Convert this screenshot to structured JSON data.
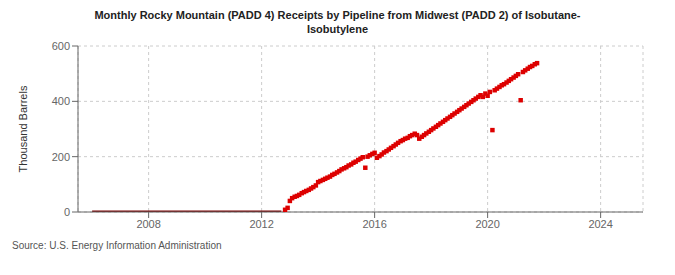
{
  "chart_data": {
    "type": "scatter",
    "title": "Monthly Rocky Mountain (PADD 4) Receipts by Pipeline from Midwest (PADD 2) of Isobutane-\nIsobutylene",
    "ylabel": "Thousand Barrels",
    "annotations": [
      "Source: U.S. Energy Information Administration"
    ],
    "xlim": [
      2005.5,
      2025.5
    ],
    "xticks": [
      2008,
      2012,
      2016,
      2020,
      2024
    ],
    "ylim": [
      0,
      600
    ],
    "yticks": [
      0,
      200,
      400,
      600
    ],
    "grid": true,
    "series": [
      {
        "type": "line",
        "color": "#7a0000",
        "line_style": "solid",
        "x": [
          2006.0,
          2006.1,
          2006.2,
          2006.3,
          2006.4,
          2006.5,
          2006.6,
          2006.7,
          2006.8,
          2006.9,
          2007.0,
          2007.1,
          2007.2,
          2007.3,
          2007.4,
          2007.5,
          2007.6,
          2007.7,
          2007.8,
          2007.9,
          2008.0,
          2008.1,
          2008.2,
          2008.3,
          2008.4,
          2008.5,
          2008.6,
          2008.7,
          2008.8,
          2008.9,
          2009.0,
          2009.1,
          2009.2,
          2009.3,
          2009.4,
          2009.5,
          2009.6,
          2009.7,
          2009.8,
          2009.9,
          2010.0,
          2010.1,
          2010.2,
          2010.3,
          2010.4,
          2010.5,
          2010.6,
          2010.7,
          2010.8,
          2010.9,
          2011.0,
          2011.1,
          2011.2,
          2011.3,
          2011.4,
          2011.5,
          2011.6,
          2011.7,
          2011.8,
          2011.9,
          2012.0,
          2012.1,
          2012.2,
          2012.3,
          2012.4,
          2012.5,
          2012.6,
          2012.7
        ],
        "values": [
          0,
          0,
          0,
          0,
          0,
          0,
          0,
          0,
          0,
          0,
          0,
          0,
          0,
          0,
          0,
          0,
          0,
          0,
          0,
          0,
          0,
          0,
          0,
          0,
          0,
          0,
          0,
          0,
          0,
          0,
          0,
          0,
          0,
          0,
          0,
          0,
          0,
          0,
          0,
          0,
          0,
          0,
          0,
          0,
          0,
          0,
          0,
          0,
          0,
          0,
          0,
          0,
          0,
          0,
          0,
          0,
          0,
          0,
          0,
          0,
          0,
          0,
          0,
          0,
          0,
          0,
          0,
          0
        ]
      },
      {
        "type": "scatter",
        "color": "#dd0000",
        "marker": "square",
        "x": [
          2012.83,
          2012.92,
          2013.0,
          2013.08,
          2013.17,
          2013.25,
          2013.33,
          2013.42,
          2013.5,
          2013.58,
          2013.67,
          2013.75,
          2013.83,
          2013.92,
          2014.0,
          2014.08,
          2014.17,
          2014.25,
          2014.33,
          2014.42,
          2014.5,
          2014.58,
          2014.67,
          2014.75,
          2014.83,
          2014.92,
          2015.0,
          2015.08,
          2015.17,
          2015.25,
          2015.33,
          2015.42,
          2015.5,
          2015.58,
          2015.67,
          2015.75,
          2015.83,
          2015.92,
          2016.0,
          2016.08,
          2016.17,
          2016.25,
          2016.33,
          2016.42,
          2016.5,
          2016.58,
          2016.67,
          2016.75,
          2016.83,
          2016.92,
          2017.0,
          2017.08,
          2017.17,
          2017.25,
          2017.33,
          2017.42,
          2017.5,
          2017.58,
          2017.67,
          2017.75,
          2017.83,
          2017.92,
          2018.0,
          2018.08,
          2018.17,
          2018.25,
          2018.33,
          2018.42,
          2018.5,
          2018.58,
          2018.67,
          2018.75,
          2018.83,
          2018.92,
          2019.0,
          2019.08,
          2019.17,
          2019.25,
          2019.33,
          2019.42,
          2019.5,
          2019.58,
          2019.67,
          2019.75,
          2019.83,
          2019.92,
          2020.0,
          2020.08,
          2020.17,
          2020.25,
          2020.33,
          2020.42,
          2020.5,
          2020.58,
          2020.67,
          2020.75,
          2020.83,
          2020.92,
          2021.0,
          2021.08,
          2021.17,
          2021.25,
          2021.33,
          2021.42,
          2021.5,
          2021.58,
          2021.67,
          2021.75
        ],
        "values": [
          8,
          15,
          40,
          50,
          55,
          58,
          62,
          68,
          72,
          76,
          80,
          85,
          90,
          96,
          108,
          112,
          116,
          120,
          124,
          128,
          134,
          138,
          143,
          148,
          154,
          158,
          162,
          168,
          172,
          178,
          182,
          188,
          193,
          198,
          160,
          200,
          205,
          210,
          214,
          196,
          202,
          208,
          215,
          220,
          226,
          232,
          238,
          244,
          250,
          256,
          260,
          265,
          268,
          274,
          278,
          283,
          278,
          265,
          272,
          278,
          284,
          290,
          296,
          302,
          308,
          314,
          320,
          326,
          332,
          338,
          344,
          350,
          356,
          362,
          368,
          374,
          380,
          386,
          392,
          398,
          404,
          410,
          416,
          422,
          416,
          428,
          420,
          434,
          296,
          440,
          446,
          452,
          458,
          462,
          468,
          474,
          480,
          486,
          492,
          498,
          404,
          506,
          512,
          518,
          524,
          528,
          534,
          538
        ]
      }
    ]
  }
}
